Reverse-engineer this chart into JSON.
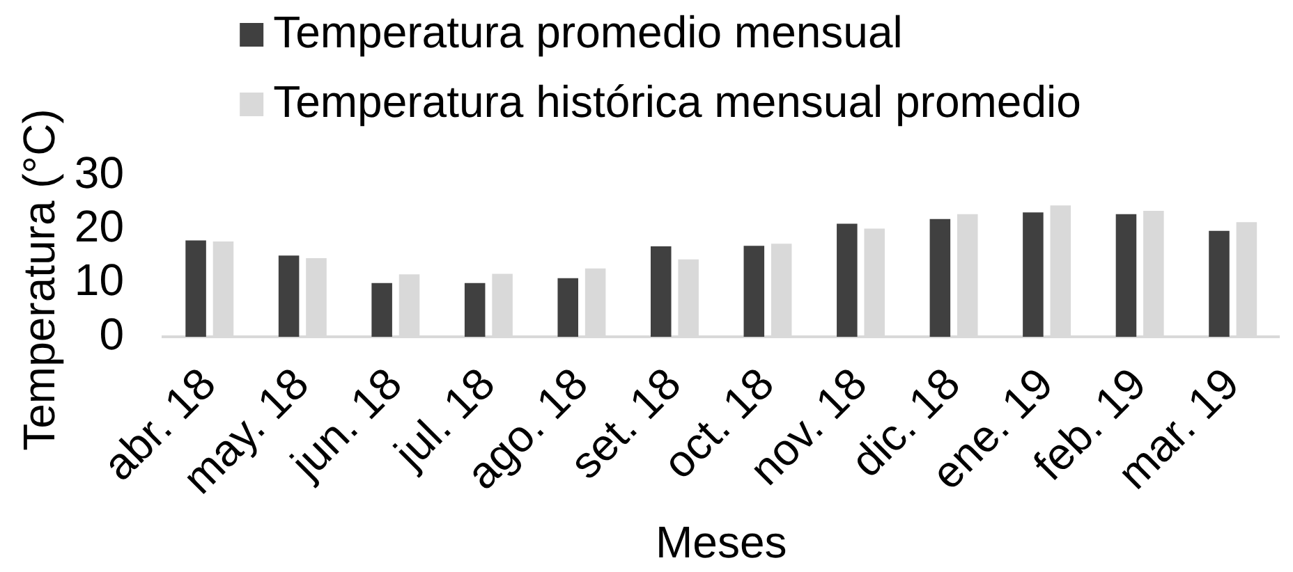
{
  "chart_data": {
    "type": "bar",
    "categories": [
      "abr. 18",
      "may. 18",
      "jun. 18",
      "jul. 18",
      "ago. 18",
      "set. 18",
      "oct. 18",
      "nov. 18",
      "dic. 18",
      "ene. 19",
      "feb. 19",
      "mar. 19"
    ],
    "series": [
      {
        "name": "Temperatura promedio mensual",
        "color": "#404040",
        "values": [
          17.9,
          15.1,
          10.0,
          10.0,
          10.9,
          16.8,
          16.9,
          21.0,
          21.9,
          23.1,
          22.8,
          19.7
        ]
      },
      {
        "name": "Temperatura histórica mensual promedio",
        "color": "#d9d9d9",
        "values": [
          17.7,
          14.6,
          11.6,
          11.7,
          12.7,
          14.4,
          17.3,
          20.1,
          22.8,
          24.4,
          23.4,
          21.3
        ]
      }
    ],
    "xlabel": "Meses",
    "ylabel": "Temperatura (°C)",
    "ylim": [
      0,
      30
    ],
    "yticks": [
      0,
      10,
      20,
      30
    ],
    "legend": "top"
  }
}
